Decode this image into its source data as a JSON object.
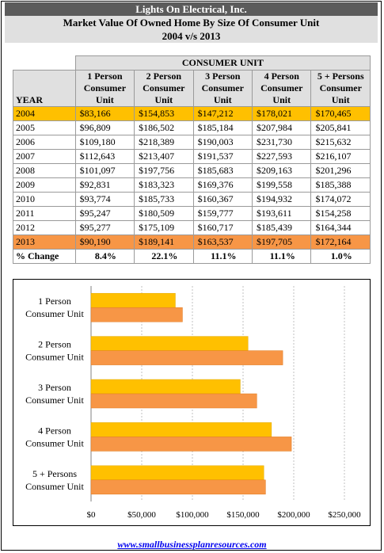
{
  "header": {
    "company": "Lights On Electrical, Inc.",
    "subtitle": "Market Value Of Owned Home By Size Of Consumer Unit",
    "period": "2004 v/s 2013"
  },
  "table": {
    "group_header": "CONSUMER UNIT",
    "year_header": "YEAR",
    "columns": [
      "1 Person Consumer Unit",
      "2 Person Consumer Unit",
      "3 Person Consumer Unit",
      "4 Person Consumer Unit",
      "5 + Persons Consumer Unit"
    ],
    "rows": [
      {
        "year": "2004",
        "values": [
          "$83,166",
          "$154,853",
          "$147,212",
          "$178,021",
          "$170,465"
        ]
      },
      {
        "year": "2005",
        "values": [
          "$96,809",
          "$186,502",
          "$185,184",
          "$207,984",
          "$205,841"
        ]
      },
      {
        "year": "2006",
        "values": [
          "$109,180",
          "$218,389",
          "$190,003",
          "$231,730",
          "$215,632"
        ]
      },
      {
        "year": "2007",
        "values": [
          "$112,643",
          "$213,407",
          "$191,537",
          "$227,593",
          "$216,107"
        ]
      },
      {
        "year": "2008",
        "values": [
          "$101,097",
          "$197,756",
          "$185,683",
          "$209,163",
          "$201,296"
        ]
      },
      {
        "year": "2009",
        "values": [
          "$92,831",
          "$183,323",
          "$169,376",
          "$199,558",
          "$185,388"
        ]
      },
      {
        "year": "2010",
        "values": [
          "$93,774",
          "$185,733",
          "$160,367",
          "$194,932",
          "$174,072"
        ]
      },
      {
        "year": "2011",
        "values": [
          "$95,247",
          "$180,509",
          "$159,777",
          "$193,611",
          "$154,258"
        ]
      },
      {
        "year": "2012",
        "values": [
          "$95,277",
          "$175,109",
          "$160,717",
          "$185,439",
          "$164,344"
        ]
      },
      {
        "year": "2013",
        "values": [
          "$90,190",
          "$189,141",
          "$163,537",
          "$197,705",
          "$172,164"
        ]
      }
    ],
    "change_label": "% Change",
    "change_values": [
      "8.4%",
      "22.1%",
      "11.1%",
      "11.1%",
      "1.0%"
    ]
  },
  "chart_data": {
    "type": "bar",
    "orientation": "horizontal",
    "categories": [
      "1 Person Consumer Unit",
      "2 Person Consumer Unit",
      "3 Person Consumer Unit",
      "4 Person Consumer Unit",
      "5 + Persons Consumer Unit"
    ],
    "series": [
      {
        "values": [
          83166,
          154853,
          147212,
          178021,
          170465
        ],
        "color": "#ffc000"
      },
      {
        "values": [
          90190,
          189141,
          163537,
          197705,
          172164
        ],
        "color": "#f79646"
      }
    ],
    "xlim": [
      0,
      250000
    ],
    "xticks": [
      "$0",
      "$50,000",
      "$100,000",
      "$150,000",
      "$200,000",
      "$250,000"
    ],
    "grid": true,
    "title": "",
    "xlabel": "",
    "ylabel": ""
  },
  "footer": {
    "link_text": "www.smallbusinessplanresources.com"
  }
}
